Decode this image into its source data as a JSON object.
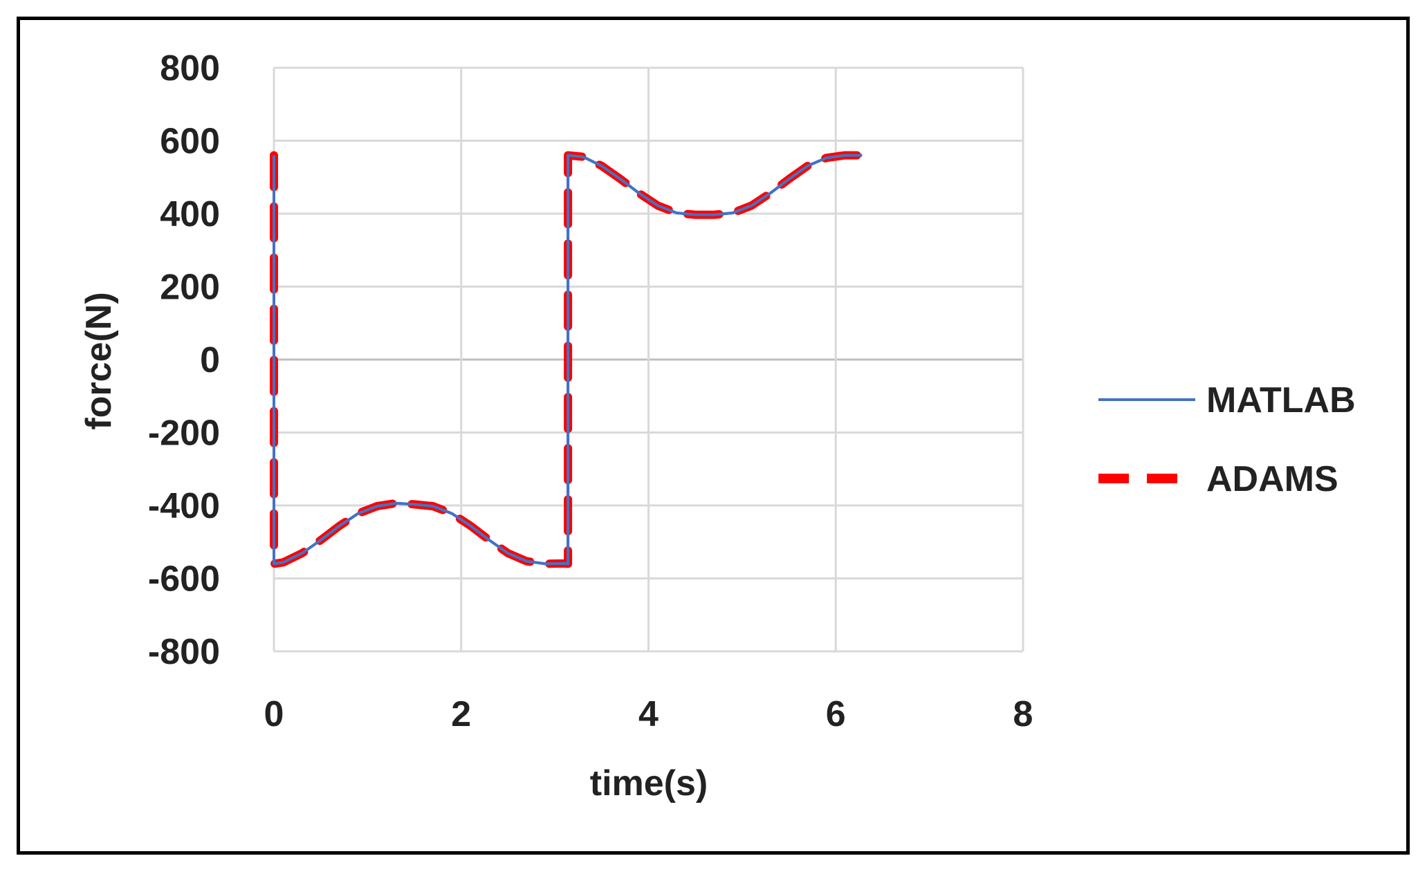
{
  "chart_data": {
    "type": "line",
    "title": "",
    "xlabel": "time(s)",
    "ylabel": "force(N)",
    "xlim": [
      0,
      8
    ],
    "ylim": [
      -800,
      800
    ],
    "xticks": [
      0,
      2,
      4,
      6,
      8
    ],
    "yticks": [
      800,
      600,
      400,
      200,
      0,
      -200,
      -400,
      -600,
      -800
    ],
    "grid": true,
    "legend_position": "right",
    "series": [
      {
        "name": "MATLAB",
        "color": "#4472C4",
        "style": "solid",
        "x": [
          0,
          0,
          0.1,
          0.3,
          0.5,
          0.7,
          0.9,
          1.1,
          1.3,
          1.5,
          1.7,
          1.9,
          2.1,
          2.3,
          2.5,
          2.7,
          2.9,
          3.1,
          3.14,
          3.14,
          3.3,
          3.5,
          3.7,
          3.9,
          4.1,
          4.3,
          4.5,
          4.7,
          4.9,
          5.1,
          5.3,
          5.5,
          5.7,
          5.9,
          6.1,
          6.28
        ],
        "y": [
          560,
          -560,
          -556,
          -531,
          -495,
          -456,
          -422,
          -402,
          -394,
          -397,
          -402,
          -422,
          -456,
          -495,
          -531,
          -553,
          -560,
          -559,
          -560,
          560,
          556,
          531,
          495,
          456,
          422,
          402,
          397,
          397,
          402,
          422,
          456,
          495,
          531,
          553,
          560,
          560
        ]
      },
      {
        "name": "ADAMS",
        "color": "#FF0000",
        "style": "dashed",
        "x": [
          0,
          0,
          0.1,
          0.3,
          0.5,
          0.7,
          0.9,
          1.1,
          1.3,
          1.5,
          1.7,
          1.9,
          2.1,
          2.3,
          2.5,
          2.7,
          2.9,
          3.1,
          3.14,
          3.14,
          3.3,
          3.5,
          3.7,
          3.9,
          4.1,
          4.3,
          4.5,
          4.7,
          4.9,
          5.1,
          5.3,
          5.5,
          5.7,
          5.9,
          6.1,
          6.28
        ],
        "y": [
          560,
          -560,
          -556,
          -531,
          -495,
          -456,
          -422,
          -402,
          -394,
          -397,
          -402,
          -422,
          -456,
          -495,
          -531,
          -553,
          -560,
          -559,
          -560,
          560,
          556,
          531,
          495,
          456,
          422,
          402,
          397,
          397,
          402,
          422,
          456,
          495,
          531,
          553,
          560,
          560
        ]
      }
    ]
  }
}
